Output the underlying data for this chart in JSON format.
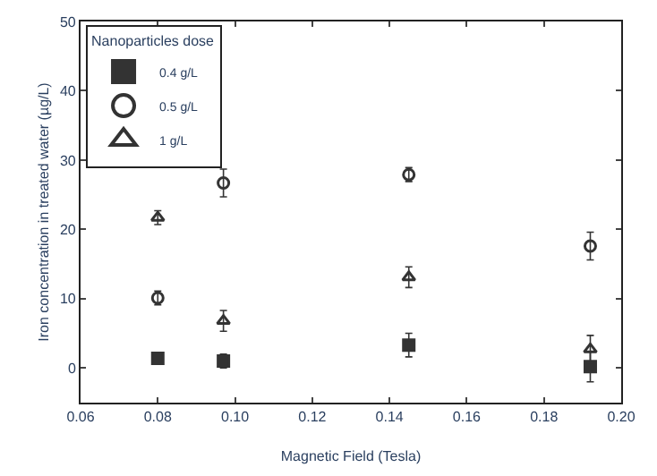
{
  "chart_data": {
    "type": "scatter",
    "xlabel": "Magnetic Field (Tesla)",
    "ylabel": "Iron concentration in treated water (µg/L)",
    "legend_title": "Nanoparticles dose",
    "legend": "top left",
    "x": [
      0.08,
      0.097,
      0.145,
      0.192
    ],
    "xlim": [
      0.06,
      0.2
    ],
    "xticks": [
      {
        "value": 0.06,
        "label": "0.06"
      },
      {
        "value": 0.08,
        "label": "0.08"
      },
      {
        "value": 0.1,
        "label": "0.10"
      },
      {
        "value": 0.12,
        "label": "0.12"
      },
      {
        "value": 0.14,
        "label": "0.14"
      },
      {
        "value": 0.16,
        "label": "0.16"
      },
      {
        "value": 0.18,
        "label": "0.18"
      },
      {
        "value": 0.2,
        "label": "0.20"
      }
    ],
    "ylim": [
      -5,
      50
    ],
    "yticks": [
      0,
      10,
      20,
      30,
      40,
      50
    ],
    "series": [
      {
        "name": "0.4 g/L",
        "color": "#333333",
        "marker": "square",
        "values": [
          1.4,
          1.0,
          3.3,
          0.2
        ],
        "errors": [
          null,
          1.0,
          1.7,
          2.2
        ]
      },
      {
        "name": "0.5 g/L",
        "color": "#333333",
        "marker": "circle",
        "values": [
          10.1,
          26.7,
          27.9,
          17.6
        ],
        "errors": [
          1.0,
          2.0,
          1.0,
          2.0
        ]
      },
      {
        "name": "1 g/L",
        "color": "#333333",
        "marker": "triangle",
        "values": [
          21.7,
          6.8,
          13.1,
          2.7
        ],
        "errors": [
          1.0,
          1.5,
          1.5,
          2.0
        ]
      }
    ]
  }
}
